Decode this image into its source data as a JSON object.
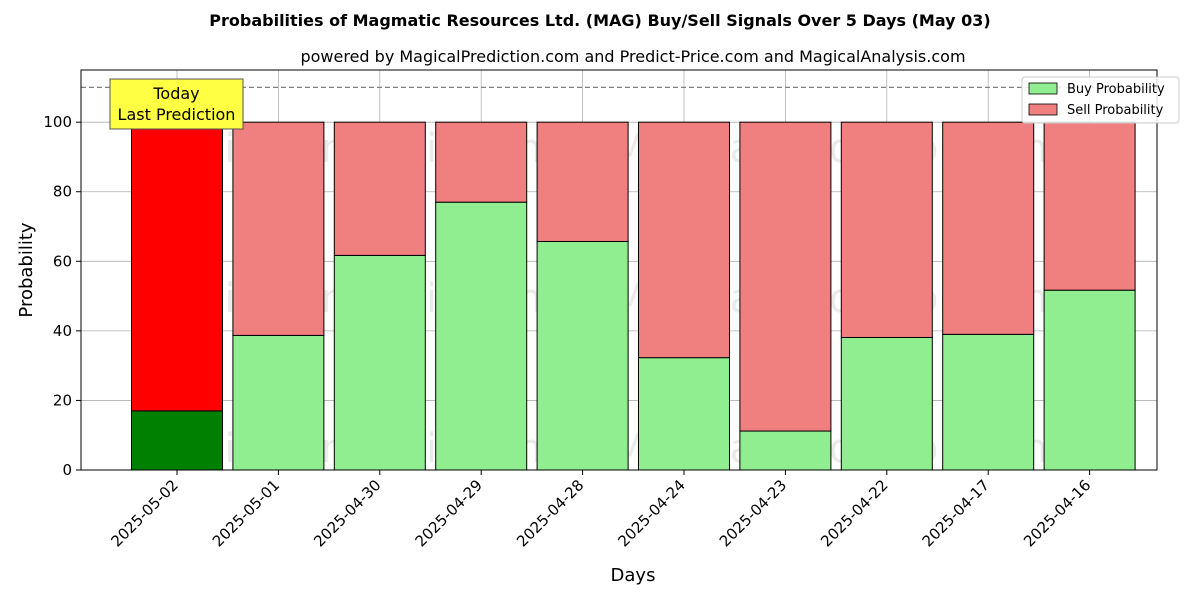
{
  "chart_data": {
    "type": "bar",
    "title": "Probabilities of Magmatic Resources Ltd. (MAG) Buy/Sell Signals Over 5 Days (May 03)",
    "subtitle": "powered by MagicalPrediction.com and Predict-Price.com and MagicalAnalysis.com",
    "xlabel": "Days",
    "ylabel": "Probability",
    "ylim": [
      0,
      115
    ],
    "yticks": [
      0,
      20,
      40,
      60,
      80,
      100
    ],
    "reference_line": 110,
    "grid": true,
    "stacked": true,
    "legend_position": "top-right",
    "categories": [
      "2025-05-02",
      "2025-05-01",
      "2025-04-30",
      "2025-04-29",
      "2025-04-28",
      "2025-04-24",
      "2025-04-23",
      "2025-04-22",
      "2025-04-17",
      "2025-04-16"
    ],
    "series": [
      {
        "name": "Buy Probability",
        "color": "#90ee90",
        "highlight_color": "#008000",
        "values": [
          17,
          38.7,
          61.7,
          77,
          65.7,
          32.3,
          11.2,
          38.1,
          39,
          51.7
        ]
      },
      {
        "name": "Sell Probability",
        "color": "#f08080",
        "highlight_color": "#ff0000",
        "values": [
          83,
          61.3,
          38.3,
          23,
          34.3,
          67.7,
          88.8,
          61.9,
          61,
          48.3
        ]
      }
    ],
    "annotation": {
      "line1": "Today",
      "line2": "Last Prediction",
      "color": "#ffff44"
    },
    "watermarks": [
      "MagicalAnalysis.com",
      "MagicalPrediction.com"
    ]
  }
}
